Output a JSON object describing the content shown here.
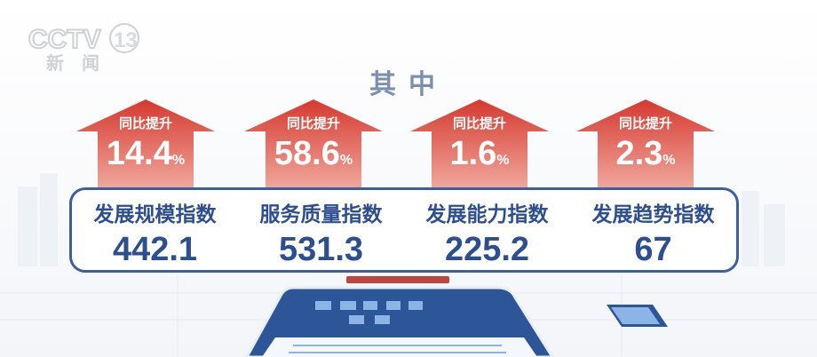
{
  "logo": {
    "channel": "CCTV13",
    "text": "新闻"
  },
  "title": "其中",
  "items": [
    {
      "label": "同比提升",
      "growth": "14.4",
      "unit": "%",
      "name": "发展规模指数",
      "value": "442.1"
    },
    {
      "label": "同比提升",
      "growth": "58.6",
      "unit": "%",
      "name": "服务质量指数",
      "value": "531.3"
    },
    {
      "label": "同比提升",
      "growth": "1.6",
      "unit": "%",
      "name": "发展能力指数",
      "value": "225.2"
    },
    {
      "label": "同比提升",
      "growth": "2.3",
      "unit": "%",
      "name": "发展趋势指数",
      "value": "67"
    }
  ],
  "colors": {
    "arrow": "#d9453a",
    "index_text": "#2d4f8f",
    "title": "#7d8fb0"
  }
}
